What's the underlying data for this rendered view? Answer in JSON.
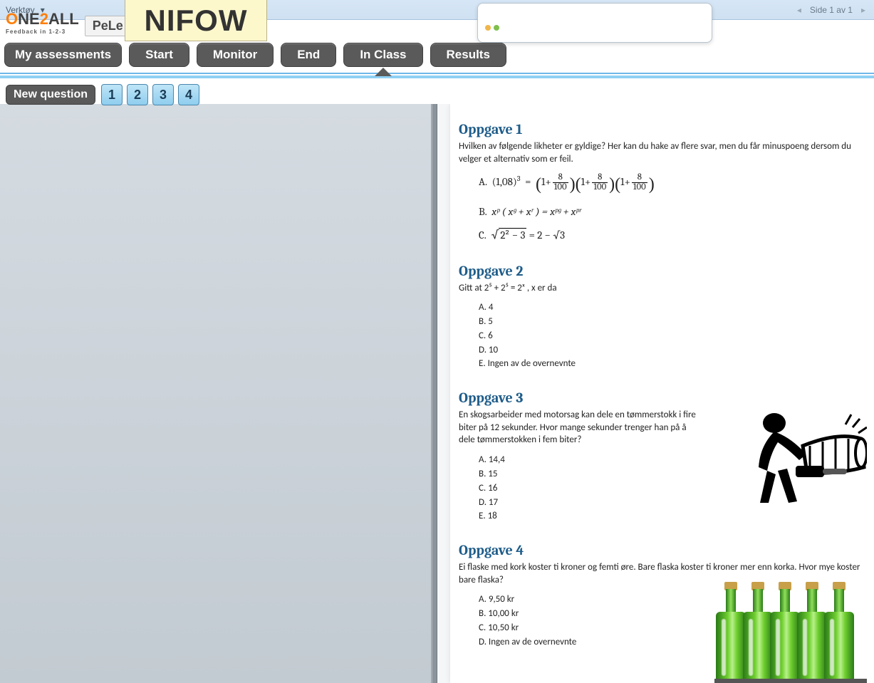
{
  "toolbar": {
    "menu_item": "Verktøy",
    "page_indicator": "Side 1 av 1"
  },
  "brand": {
    "logo_main": "ONE2ALL",
    "logo_sub": "Feedback in 1-2-3",
    "pele": "PeLe",
    "nifow": "NIFOW"
  },
  "popup": {
    "dot_colors": [
      "#f0b64a",
      "#7fbf4d"
    ]
  },
  "nav": {
    "tabs": [
      {
        "label": "My assessments",
        "active": false
      },
      {
        "label": "Start",
        "active": false
      },
      {
        "label": "Monitor",
        "active": false
      },
      {
        "label": "End",
        "active": false
      },
      {
        "label": "In Class",
        "active": true
      },
      {
        "label": "Results",
        "active": false
      }
    ]
  },
  "qrow": {
    "new_label": "New question",
    "numbers": [
      "1",
      "2",
      "3",
      "4"
    ]
  },
  "colors": {
    "tab_bg": "#5a5a5a",
    "tab_text": "#ffffff",
    "qnum_border": "#4a87ad",
    "opp_title": "#1f5d8a",
    "blue_band": "#8fd0f4",
    "left_pane_top": "#d4dbe1",
    "left_pane_bot": "#c3cbd2"
  },
  "doc": {
    "opp1": {
      "title": "Oppgave 1",
      "text": "Hvilken av følgende likheter er gyldige? Her kan du hake av flere svar, men du får minuspoeng dersom du velger et alternativ som er feil.",
      "A_label": "A.",
      "B_label": "B.",
      "C_label": "C.",
      "A_math_lhs": "(1,08)",
      "A_math_exp": "3",
      "A_frac_n": "8",
      "A_frac_d": "100",
      "B_math": "xᵖ ( xᵍ + xʳ ) = xᵖᵍ + xᵖʳ",
      "C_pre": "√",
      "C_inside": "2² − 3",
      "C_rhs": " = 2 − √3"
    },
    "opp2": {
      "title": "Oppgave 2",
      "text": "Gitt at 2⁵ + 2⁵ = 2ˣ , x er da",
      "opts": [
        "A. 4",
        "B. 5",
        "C. 6",
        "D. 10",
        "E. Ingen av de overnevnte"
      ]
    },
    "opp3": {
      "title": "Oppgave 3",
      "text": "En skogsarbeider med motorsag kan dele en tømmerstokk i fire biter på 12 sekunder. Hvor mange sekunder trenger han på å dele tømmerstokken i fem biter?",
      "opts": [
        "A. 14,4",
        "B. 15",
        "C. 16",
        "D. 17",
        "E. 18"
      ]
    },
    "opp4": {
      "title": "Oppgave 4",
      "text": "Ei flaske med kork koster ti kroner og femti øre. Bare flaska koster ti kroner mer enn korka. Hvor mye koster bare flaska?",
      "opts": [
        "A. 9,50 kr",
        "B. 10,00 kr",
        "C. 10,50 kr",
        "D. Ingen av de overnevnte"
      ]
    }
  },
  "typography": {
    "opp_title_font": "Cambria",
    "opp_title_size_pt": 15,
    "body_font": "Calibri",
    "body_size_pt": 10
  }
}
